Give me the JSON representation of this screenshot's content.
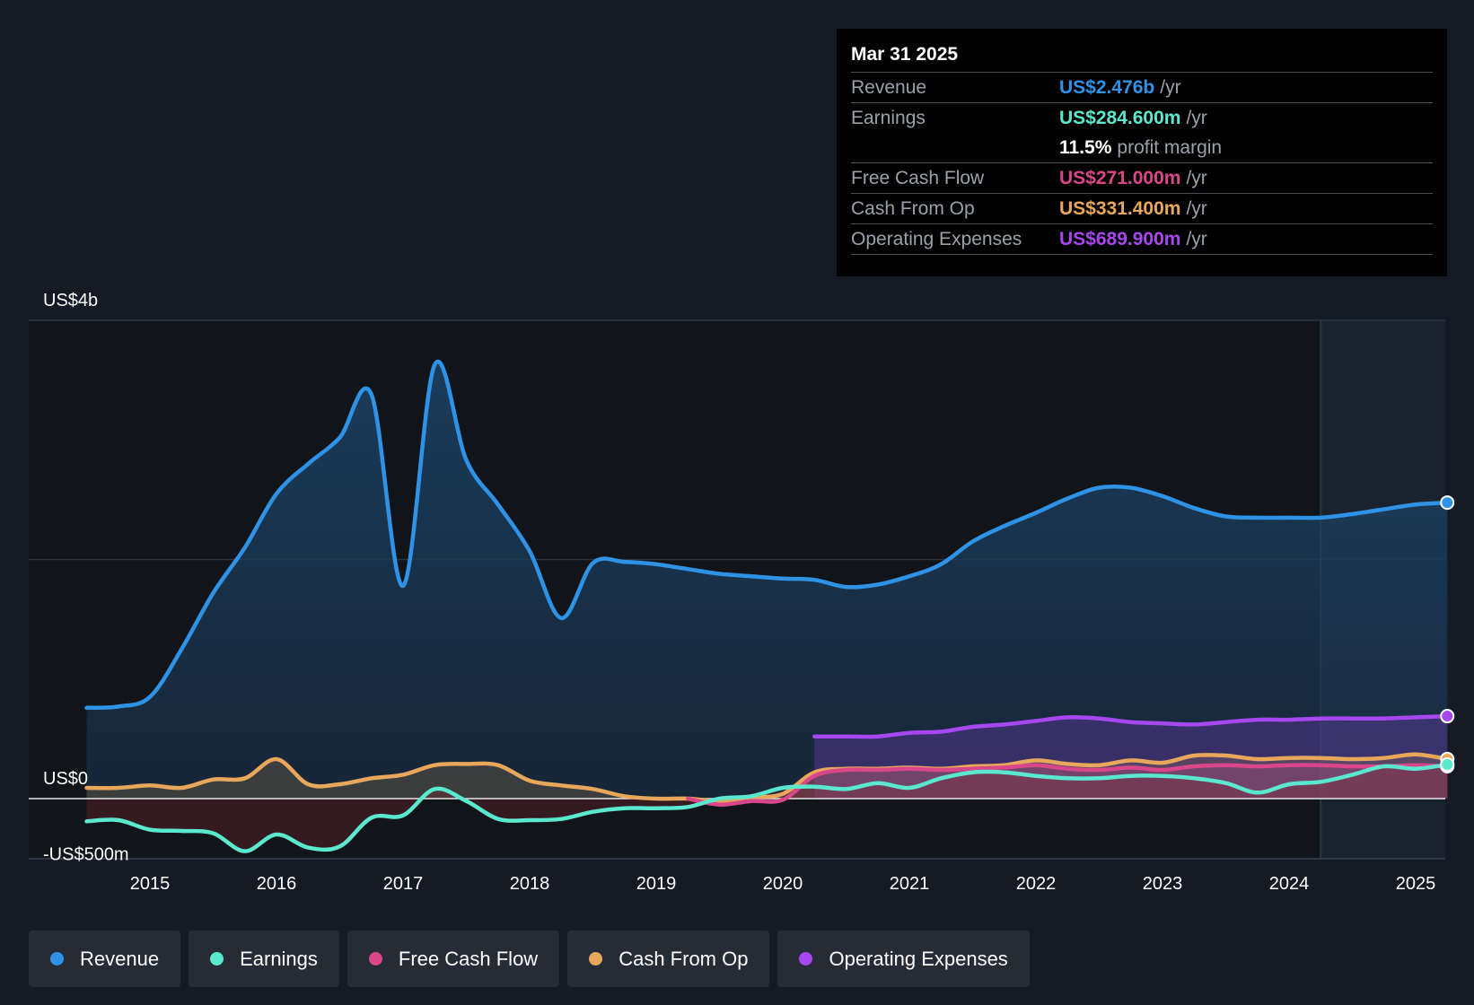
{
  "tooltip": {
    "date": "Mar 31 2025",
    "rows": [
      {
        "label": "Revenue",
        "value": "US$2.476b",
        "unit": "/yr"
      },
      {
        "label": "Earnings",
        "value": "US$284.600m",
        "unit": "/yr"
      },
      {
        "label": "",
        "value": "11.5%",
        "unit": "profit margin"
      },
      {
        "label": "Free Cash Flow",
        "value": "US$271.000m",
        "unit": "/yr"
      },
      {
        "label": "Cash From Op",
        "value": "US$331.400m",
        "unit": "/yr"
      },
      {
        "label": "Operating Expenses",
        "value": "US$689.900m",
        "unit": "/yr"
      }
    ]
  },
  "legend": [
    {
      "label": "Revenue"
    },
    {
      "label": "Earnings"
    },
    {
      "label": "Free Cash Flow"
    },
    {
      "label": "Cash From Op"
    },
    {
      "label": "Operating Expenses"
    }
  ],
  "chart_data": {
    "type": "area",
    "title": "",
    "xlabel": "",
    "ylabel": "",
    "xlim": [
      2014.5,
      2025.25
    ],
    "ylim": [
      -500,
      4000
    ],
    "forecast_start": 2024.25,
    "y_tick_labels": [
      {
        "value": 4000,
        "label": "US$4b"
      },
      {
        "value": 0,
        "label": "US$0"
      },
      {
        "value": -500,
        "label": "-US$500m"
      }
    ],
    "x_tick_labels": [
      "2015",
      "2016",
      "2017",
      "2018",
      "2019",
      "2020",
      "2021",
      "2022",
      "2023",
      "2024",
      "2025"
    ],
    "series": [
      {
        "name": "Revenue",
        "color": "#2e93e6",
        "x": [
          2014.5,
          2014.75,
          2015.0,
          2015.25,
          2015.5,
          2015.75,
          2016.0,
          2016.25,
          2016.5,
          2016.75,
          2017.0,
          2017.25,
          2017.5,
          2017.75,
          2018.0,
          2018.25,
          2018.5,
          2018.75,
          2019.0,
          2019.25,
          2019.5,
          2019.75,
          2020.0,
          2020.25,
          2020.5,
          2020.75,
          2021.0,
          2021.25,
          2021.5,
          2021.75,
          2022.0,
          2022.25,
          2022.5,
          2022.75,
          2023.0,
          2023.25,
          2023.5,
          2023.75,
          2024.0,
          2024.25,
          2024.5,
          2024.75,
          2025.0,
          2025.25
        ],
        "values": [
          760,
          770,
          850,
          1250,
          1720,
          2100,
          2550,
          2800,
          3020,
          3380,
          1780,
          3630,
          2830,
          2460,
          2070,
          1510,
          1970,
          1980,
          1960,
          1920,
          1880,
          1860,
          1840,
          1830,
          1770,
          1790,
          1860,
          1960,
          2150,
          2280,
          2390,
          2510,
          2600,
          2600,
          2530,
          2430,
          2360,
          2350,
          2350,
          2350,
          2380,
          2420,
          2460,
          2476
        ]
      },
      {
        "name": "Earnings",
        "color": "#5ae8cf",
        "x": [
          2014.5,
          2014.75,
          2015.0,
          2015.25,
          2015.5,
          2015.75,
          2016.0,
          2016.25,
          2016.5,
          2016.75,
          2017.0,
          2017.25,
          2017.5,
          2017.75,
          2018.0,
          2018.25,
          2018.5,
          2018.75,
          2019.0,
          2019.25,
          2019.5,
          2019.75,
          2020.0,
          2020.25,
          2020.5,
          2020.75,
          2021.0,
          2021.25,
          2021.5,
          2021.75,
          2022.0,
          2022.25,
          2022.5,
          2022.75,
          2023.0,
          2023.25,
          2023.5,
          2023.75,
          2024.0,
          2024.25,
          2024.5,
          2024.75,
          2025.0,
          2025.25
        ],
        "values": [
          -190,
          -180,
          -260,
          -270,
          -290,
          -440,
          -300,
          -410,
          -400,
          -160,
          -140,
          80,
          -20,
          -170,
          -180,
          -170,
          -110,
          -80,
          -80,
          -70,
          0,
          20,
          90,
          100,
          80,
          130,
          90,
          170,
          220,
          220,
          190,
          170,
          170,
          190,
          190,
          170,
          130,
          50,
          120,
          140,
          200,
          270,
          250,
          285
        ]
      },
      {
        "name": "Free Cash Flow",
        "color": "#d9478a",
        "x": [
          2019.25,
          2019.5,
          2019.75,
          2020.0,
          2020.25,
          2020.5,
          2020.75,
          2021.0,
          2021.25,
          2021.5,
          2021.75,
          2022.0,
          2022.25,
          2022.5,
          2022.75,
          2023.0,
          2023.25,
          2023.5,
          2023.75,
          2024.0,
          2024.25,
          2024.5,
          2024.75,
          2025.0,
          2025.25
        ],
        "values": [
          0,
          -50,
          -20,
          -10,
          190,
          240,
          240,
          250,
          240,
          250,
          260,
          280,
          250,
          240,
          260,
          240,
          270,
          280,
          270,
          280,
          280,
          270,
          270,
          280,
          271
        ]
      },
      {
        "name": "Cash From Op",
        "color": "#e8a75a",
        "x": [
          2014.5,
          2014.75,
          2015.0,
          2015.25,
          2015.5,
          2015.75,
          2016.0,
          2016.25,
          2016.5,
          2016.75,
          2017.0,
          2017.25,
          2017.5,
          2017.75,
          2018.0,
          2018.25,
          2018.5,
          2018.75,
          2019.0,
          2019.25,
          2019.5,
          2019.75,
          2020.0,
          2020.25,
          2020.5,
          2020.75,
          2021.0,
          2021.25,
          2021.5,
          2021.75,
          2022.0,
          2022.25,
          2022.5,
          2022.75,
          2023.0,
          2023.25,
          2023.5,
          2023.75,
          2024.0,
          2024.25,
          2024.5,
          2024.75,
          2025.0,
          2025.25
        ],
        "values": [
          90,
          90,
          110,
          90,
          160,
          170,
          330,
          120,
          120,
          170,
          200,
          280,
          290,
          280,
          150,
          110,
          80,
          20,
          0,
          0,
          -20,
          10,
          40,
          220,
          250,
          250,
          260,
          250,
          270,
          280,
          320,
          290,
          280,
          320,
          300,
          360,
          360,
          330,
          340,
          340,
          330,
          340,
          370,
          331
        ]
      },
      {
        "name": "Operating Expenses",
        "color": "#a647ef",
        "x": [
          2020.25,
          2020.5,
          2020.75,
          2021.0,
          2021.25,
          2021.5,
          2021.75,
          2022.0,
          2022.25,
          2022.5,
          2022.75,
          2023.0,
          2023.25,
          2023.5,
          2023.75,
          2024.0,
          2024.25,
          2024.5,
          2024.75,
          2025.0,
          2025.25
        ],
        "values": [
          520,
          520,
          520,
          550,
          560,
          600,
          620,
          650,
          680,
          670,
          640,
          630,
          620,
          640,
          660,
          660,
          670,
          670,
          670,
          680,
          690
        ]
      }
    ]
  }
}
